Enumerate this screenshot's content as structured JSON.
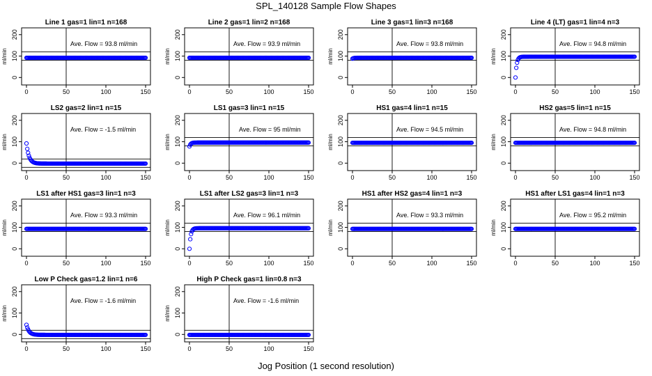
{
  "title": "SPL_140128  Sample Flow Shapes",
  "xlabel": "Jog Position (1 second resolution)",
  "colors": {
    "points": "#0000ff",
    "axes": "#000000",
    "background": "#ffffff"
  },
  "chart_data": [
    {
      "type": "scatter",
      "title": "Line 1 gas=1 lin=1 n=168",
      "ylabel": "ml/min",
      "annotation": "Ave. Flow =  93.8  ml/min",
      "x_ticks": [
        "0",
        "50",
        "100",
        "150"
      ],
      "y_ticks": [
        "0",
        "100",
        "200"
      ],
      "xlim": [
        0,
        150
      ],
      "ylim": [
        0,
        200
      ],
      "grid": false,
      "series": [
        {
          "shape": "flat",
          "start_value": 92,
          "plateau": 92,
          "x_end": 150
        }
      ]
    },
    {
      "type": "scatter",
      "title": "Line 2 gas=1 lin=2 n=168",
      "ylabel": "ml/min",
      "annotation": "Ave. Flow =  93.9  ml/min",
      "x_ticks": [
        "0",
        "50",
        "100",
        "150"
      ],
      "y_ticks": [
        "0",
        "100",
        "200"
      ],
      "xlim": [
        0,
        150
      ],
      "ylim": [
        0,
        200
      ],
      "grid": false,
      "series": [
        {
          "shape": "flat",
          "start_value": 92,
          "plateau": 92,
          "x_end": 150
        }
      ]
    },
    {
      "type": "scatter",
      "title": "Line 3 gas=1 lin=3 n=168",
      "ylabel": "ml/min",
      "annotation": "Ave. Flow =  93.8  ml/min",
      "x_ticks": [
        "0",
        "50",
        "100",
        "150"
      ],
      "y_ticks": [
        "0",
        "100",
        "200"
      ],
      "xlim": [
        0,
        150
      ],
      "ylim": [
        0,
        200
      ],
      "grid": false,
      "series": [
        {
          "shape": "rise",
          "start_value": 88,
          "plateau": 92,
          "x_end": 150
        }
      ]
    },
    {
      "type": "scatter",
      "title": "Line 4 (LT) gas=1 lin=4 n=3",
      "ylabel": "ml/min",
      "annotation": "Ave. Flow =  94.8  ml/min",
      "x_ticks": [
        "0",
        "50",
        "100",
        "150"
      ],
      "y_ticks": [
        "0",
        "100",
        "200"
      ],
      "xlim": [
        0,
        150
      ],
      "ylim": [
        0,
        200
      ],
      "grid": false,
      "series": [
        {
          "shape": "rise",
          "start_value": 0,
          "plateau": 97,
          "x_end": 150
        }
      ]
    },
    {
      "type": "scatter",
      "title": "LS2 gas=2 lin=1 n=15",
      "ylabel": "ml/min",
      "annotation": "Ave. Flow =  -1.5  ml/min",
      "x_ticks": [
        "0",
        "50",
        "100",
        "150"
      ],
      "y_ticks": [
        "0",
        "100",
        "200"
      ],
      "xlim": [
        0,
        150
      ],
      "ylim": [
        0,
        200
      ],
      "grid": false,
      "series": [
        {
          "shape": "decay",
          "start_value": 92,
          "plateau": -2,
          "x_end": 150
        }
      ]
    },
    {
      "type": "scatter",
      "title": "LS1 gas=3 lin=1 n=15",
      "ylabel": "ml/min",
      "annotation": "Ave. Flow =  95  ml/min",
      "x_ticks": [
        "0",
        "50",
        "100",
        "150"
      ],
      "y_ticks": [
        "0",
        "100",
        "200"
      ],
      "xlim": [
        0,
        150
      ],
      "ylim": [
        0,
        200
      ],
      "grid": false,
      "series": [
        {
          "shape": "rise",
          "start_value": 78,
          "plateau": 96,
          "x_end": 150
        }
      ]
    },
    {
      "type": "scatter",
      "title": "HS1 gas=4 lin=1 n=15",
      "ylabel": "ml/min",
      "annotation": "Ave. Flow =  94.5  ml/min",
      "x_ticks": [
        "0",
        "50",
        "100",
        "150"
      ],
      "y_ticks": [
        "0",
        "100",
        "200"
      ],
      "xlim": [
        0,
        150
      ],
      "ylim": [
        0,
        200
      ],
      "grid": false,
      "series": [
        {
          "shape": "flat",
          "start_value": 95,
          "plateau": 95,
          "x_end": 150
        }
      ]
    },
    {
      "type": "scatter",
      "title": "HS2 gas=5 lin=1 n=15",
      "ylabel": "ml/min",
      "annotation": "Ave. Flow =  94.8  ml/min",
      "x_ticks": [
        "0",
        "50",
        "100",
        "150"
      ],
      "y_ticks": [
        "0",
        "100",
        "200"
      ],
      "xlim": [
        0,
        150
      ],
      "ylim": [
        0,
        200
      ],
      "grid": false,
      "series": [
        {
          "shape": "flat",
          "start_value": 95,
          "plateau": 95,
          "x_end": 150
        }
      ]
    },
    {
      "type": "scatter",
      "title": "LS1 after HS1 gas=3 lin=1 n=3",
      "ylabel": "ml/min",
      "annotation": "Ave. Flow =  93.3  ml/min",
      "x_ticks": [
        "0",
        "50",
        "100",
        "150"
      ],
      "y_ticks": [
        "0",
        "100",
        "200"
      ],
      "xlim": [
        0,
        150
      ],
      "ylim": [
        0,
        200
      ],
      "grid": false,
      "series": [
        {
          "shape": "flat",
          "start_value": 93,
          "plateau": 93,
          "x_end": 150
        }
      ]
    },
    {
      "type": "scatter",
      "title": "LS1 after LS2 gas=3 lin=1 n=3",
      "ylabel": "ml/min",
      "annotation": "Ave. Flow =  96.1  ml/min",
      "x_ticks": [
        "0",
        "50",
        "100",
        "150"
      ],
      "y_ticks": [
        "0",
        "100",
        "200"
      ],
      "xlim": [
        0,
        150
      ],
      "ylim": [
        0,
        200
      ],
      "grid": false,
      "series": [
        {
          "shape": "rise",
          "start_value": 0,
          "plateau": 96,
          "x_end": 150
        }
      ]
    },
    {
      "type": "scatter",
      "title": "HS1 after HS2 gas=4 lin=1 n=3",
      "ylabel": "ml/min",
      "annotation": "Ave. Flow =  93.3  ml/min",
      "x_ticks": [
        "0",
        "50",
        "100",
        "150"
      ],
      "y_ticks": [
        "0",
        "100",
        "200"
      ],
      "xlim": [
        0,
        150
      ],
      "ylim": [
        0,
        200
      ],
      "grid": false,
      "series": [
        {
          "shape": "flat",
          "start_value": 93,
          "plateau": 93,
          "x_end": 150
        }
      ]
    },
    {
      "type": "scatter",
      "title": "HS1 after LS1 gas=4 lin=1 n=3",
      "ylabel": "ml/min",
      "annotation": "Ave. Flow =  95.2  ml/min",
      "x_ticks": [
        "0",
        "50",
        "100",
        "150"
      ],
      "y_ticks": [
        "0",
        "100",
        "200"
      ],
      "xlim": [
        0,
        150
      ],
      "ylim": [
        0,
        200
      ],
      "grid": false,
      "series": [
        {
          "shape": "flat",
          "start_value": 93,
          "plateau": 93,
          "x_end": 150
        }
      ]
    },
    {
      "type": "scatter",
      "title": "Low P Check gas=1.2 lin=1 n=6",
      "ylabel": "ml/min",
      "annotation": "Ave. Flow =  -1.6  ml/min",
      "x_ticks": [
        "0",
        "50",
        "100",
        "150"
      ],
      "y_ticks": [
        "0",
        "100",
        "200"
      ],
      "xlim": [
        0,
        150
      ],
      "ylim": [
        0,
        200
      ],
      "grid": false,
      "series": [
        {
          "shape": "decay",
          "start_value": 45,
          "plateau": -2,
          "x_end": 150
        }
      ]
    },
    {
      "type": "scatter",
      "title": "High P Check gas=1 lin=0.8 n=3",
      "ylabel": "ml/min",
      "annotation": "Ave. Flow =  -1.6  ml/min",
      "x_ticks": [
        "0",
        "50",
        "100",
        "150"
      ],
      "y_ticks": [
        "0",
        "100",
        "200"
      ],
      "xlim": [
        0,
        150
      ],
      "ylim": [
        0,
        200
      ],
      "grid": false,
      "series": [
        {
          "shape": "flat",
          "start_value": -2,
          "plateau": -2,
          "x_end": 150
        }
      ]
    }
  ]
}
